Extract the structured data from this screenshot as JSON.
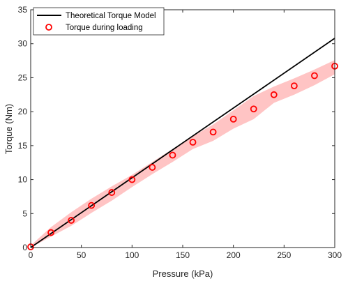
{
  "chart_data": {
    "type": "line",
    "xlabel": "Pressure (kPa)",
    "ylabel": "Torque (Nm)",
    "xlim": [
      0,
      300
    ],
    "ylim": [
      0,
      35
    ],
    "xticks": [
      0,
      50,
      100,
      150,
      200,
      250,
      300
    ],
    "yticks": [
      0,
      5,
      10,
      15,
      20,
      25,
      30,
      35
    ],
    "grid": false,
    "legend_position": "top-left",
    "series": [
      {
        "name": "Theoretical Torque Model",
        "kind": "line",
        "color": "#000000",
        "x": [
          0,
          300
        ],
        "y": [
          0,
          30.8
        ]
      },
      {
        "name": "Torque during loading",
        "kind": "scatter",
        "marker": "circle",
        "color": "#ff0000",
        "x": [
          0,
          20,
          40,
          60,
          80,
          100,
          120,
          140,
          160,
          180,
          200,
          220,
          240,
          260,
          280,
          300
        ],
        "y": [
          0.1,
          2.2,
          4.0,
          6.2,
          8.1,
          10.0,
          11.8,
          13.6,
          15.5,
          17.0,
          18.9,
          20.4,
          22.5,
          23.8,
          25.3,
          26.7
        ]
      }
    ],
    "band": {
      "color": "#ffc4c4",
      "x": [
        0,
        20,
        40,
        60,
        80,
        100,
        120,
        140,
        160,
        180,
        200,
        220,
        240,
        260,
        280,
        300
      ],
      "upper": [
        0.3,
        3.0,
        5.2,
        7.2,
        9.0,
        10.7,
        12.6,
        14.5,
        16.4,
        18.1,
        20.2,
        22.3,
        23.7,
        24.9,
        26.2,
        27.6
      ],
      "lower": [
        0.0,
        1.6,
        3.2,
        5.1,
        6.9,
        8.9,
        10.8,
        12.6,
        14.5,
        15.7,
        17.5,
        18.9,
        21.3,
        22.5,
        23.9,
        25.5
      ]
    }
  }
}
